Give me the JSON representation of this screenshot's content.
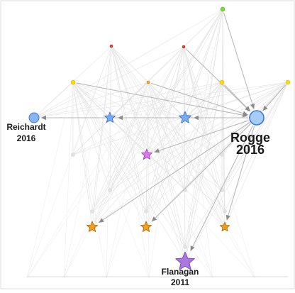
{
  "graph": {
    "nodes": [
      {
        "id": "top-green",
        "shape": "dot",
        "color": "#77dd33",
        "label": []
      },
      {
        "id": "red-left",
        "shape": "dot",
        "color": "#ee4433",
        "label": []
      },
      {
        "id": "red-right",
        "shape": "dot",
        "color": "#ee4433",
        "label": []
      },
      {
        "id": "yellow-left",
        "shape": "dot",
        "color": "#ffdd00",
        "label": []
      },
      {
        "id": "orange-mid",
        "shape": "dot",
        "color": "#ffaa22",
        "label": []
      },
      {
        "id": "yellow-right",
        "shape": "dot",
        "color": "#ffdd00",
        "label": []
      },
      {
        "id": "yellow-far-right",
        "shape": "dot",
        "color": "#ffdd00",
        "label": []
      },
      {
        "id": "reichardt",
        "shape": "circle",
        "color": "#88b4f0",
        "label": [
          "Reichardt",
          "2016"
        ]
      },
      {
        "id": "blue-star-1",
        "shape": "star",
        "color": "#78aaf0",
        "label": []
      },
      {
        "id": "blue-star-2",
        "shape": "star",
        "color": "#78aaf0",
        "label": []
      },
      {
        "id": "rogge",
        "shape": "circle",
        "color": "#a8ccf8",
        "label": [
          "Rogge",
          "2016"
        ]
      },
      {
        "id": "pink-star",
        "shape": "star",
        "color": "#dd77ee",
        "label": []
      },
      {
        "id": "orange-star-1",
        "shape": "star",
        "color": "#f0a020",
        "label": []
      },
      {
        "id": "orange-star-2",
        "shape": "star",
        "color": "#f0a020",
        "label": []
      },
      {
        "id": "orange-star-3",
        "shape": "star",
        "color": "#f0a020",
        "label": []
      },
      {
        "id": "flanagan",
        "shape": "star",
        "color": "#aa77dd",
        "label": [
          "Flanagan",
          "2011"
        ]
      }
    ],
    "highlighted_edges": [
      [
        "rogge",
        "reichardt"
      ],
      [
        "rogge",
        "blue-star-1"
      ],
      [
        "rogge",
        "blue-star-2"
      ],
      [
        "rogge",
        "pink-star"
      ],
      [
        "rogge",
        "orange-star-1"
      ],
      [
        "rogge",
        "orange-star-2"
      ],
      [
        "rogge",
        "orange-star-3"
      ],
      [
        "rogge",
        "flanagan"
      ],
      [
        "top-green",
        "rogge"
      ],
      [
        "red-right",
        "rogge"
      ],
      [
        "yellow-left",
        "rogge"
      ],
      [
        "orange-mid",
        "rogge"
      ],
      [
        "yellow-right",
        "rogge"
      ],
      [
        "yellow-far-right",
        "rogge"
      ]
    ],
    "colors": {
      "faint_edge": "#e6e6e6",
      "highlight_edge": "#b9b9b9",
      "arrow": "#8a8a8a",
      "outline": "#3a7ad8"
    }
  }
}
